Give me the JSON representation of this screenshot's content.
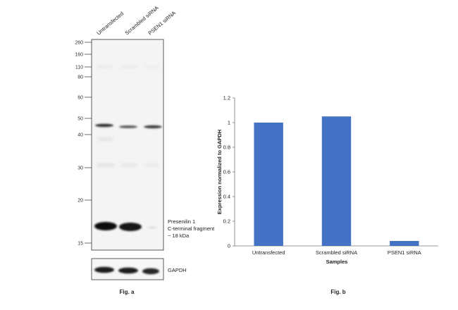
{
  "figure_a": {
    "lane_labels": [
      "Untransfected",
      "Scrambled siRNA",
      "PSEN1 siRNA"
    ],
    "mw_markers": [
      "260",
      "160",
      "110",
      "80",
      "60",
      "50",
      "40",
      "30",
      "20",
      "15"
    ],
    "band_annotation": [
      "Presenilin 1",
      "C-terminal fragment",
      "~ 18 kDa"
    ],
    "loading_control_label": "GAPDH",
    "caption": "Fig. a"
  },
  "chart_data": {
    "type": "bar",
    "categories": [
      "Untransfected",
      "Scrambled siRNA",
      "PSEN1 siRNA"
    ],
    "values": [
      1.0,
      1.05,
      0.04
    ],
    "xlabel": "Samples",
    "ylabel": "Expression normalized to GAPDH",
    "ylim": [
      0,
      1.2
    ],
    "yticks": [
      "0",
      "0.2",
      "0.4",
      "0.6",
      "0.8",
      "1",
      "1.2"
    ],
    "ytick_values": [
      0,
      0.2,
      0.4,
      0.6,
      0.8,
      1.0,
      1.2
    ],
    "bar_color": "#4472c4",
    "grid": false,
    "caption": "Fig. b"
  }
}
